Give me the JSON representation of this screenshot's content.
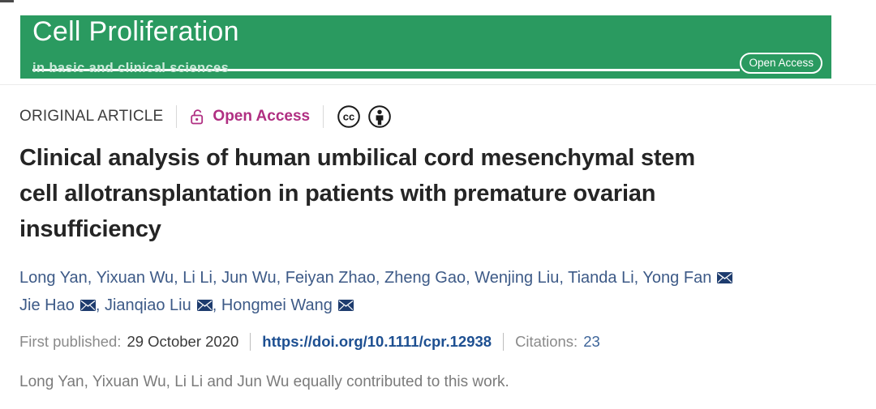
{
  "banner": {
    "journal_title": "Cell Proliferation",
    "tagline": "in basic and clinical sciences",
    "open_access_badge": "Open Access",
    "color_green": "#2a9a60"
  },
  "meta": {
    "article_type": "ORIGINAL ARTICLE",
    "access_label": "Open Access",
    "access_color": "#b02f82",
    "icons": [
      "open-lock-icon",
      "creative-commons-icon",
      "attribution-icon"
    ]
  },
  "title": {
    "text": "Clinical analysis of human umbilical cord mesenchymal stem cell allotransplantation in patients with premature ovarian insufficiency",
    "lines": [
      "Clinical analysis of human umbilical cord mesenchymal stem",
      "cell allotransplantation in patients with premature ovarian",
      "insufficiency"
    ]
  },
  "authors": {
    "color_blue": "#3d5a87",
    "lines": [
      [
        {
          "name": "Long Yan"
        },
        {
          "name": "Yixuan Wu"
        },
        {
          "name": "Li Li"
        },
        {
          "name": "Jun Wu"
        },
        {
          "name": "Feiyan Zhao"
        },
        {
          "name": "Zheng Gao"
        },
        {
          "name": "Wenjing Liu"
        },
        {
          "name": "Tianda Li"
        },
        {
          "name": "Yong Fan",
          "email": true
        }
      ],
      [
        {
          "name": "Jie Hao",
          "email": true
        },
        {
          "name": "Jianqiao Liu",
          "email": true
        },
        {
          "name": "Hongmei Wang",
          "email": true
        }
      ]
    ]
  },
  "publication": {
    "first_published_label": "First published:",
    "first_published_date": "29 October 2020",
    "doi_url": "https://doi.org/10.1111/cpr.12938",
    "citations_label": "Citations:",
    "citations_count": "23",
    "link_color": "#1d4f91"
  },
  "contribution_note": "Long Yan, Yixuan Wu, Li Li and Jun Wu equally contributed to this work."
}
